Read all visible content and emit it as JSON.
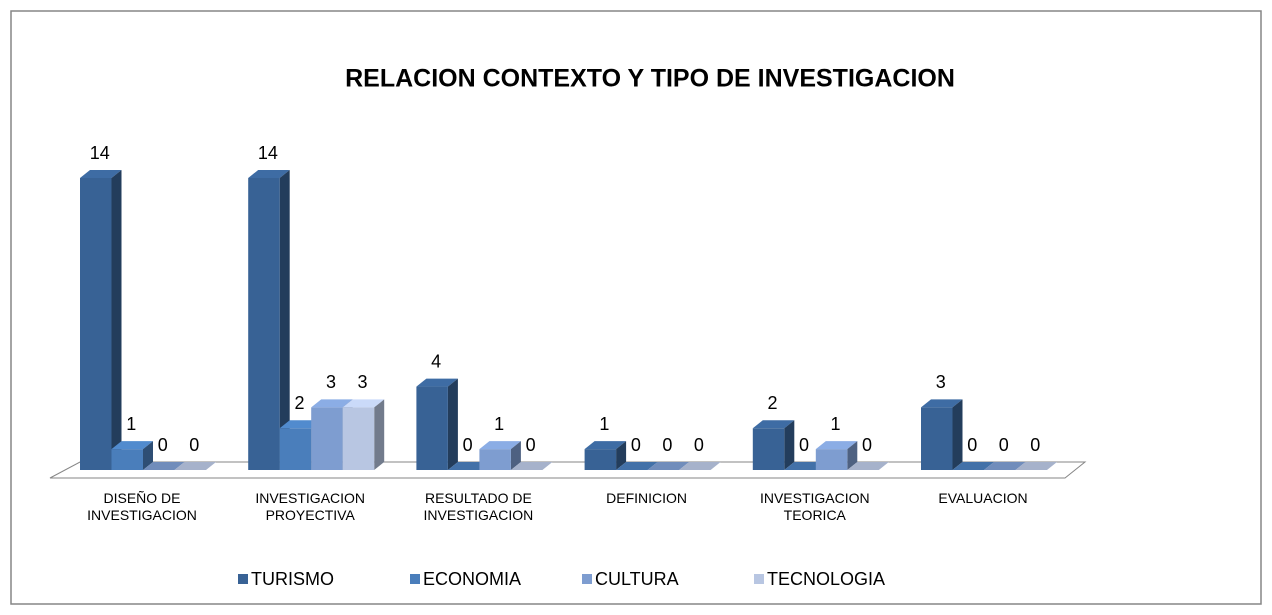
{
  "chart_data": {
    "type": "bar3d",
    "title": "RELACION CONTEXTO Y TIPO DE INVESTIGACION",
    "categories": [
      "DISEÑO DE INVESTIGACION",
      "INVESTIGACION PROYECTIVA",
      "RESULTADO DE INVESTIGACION",
      "DEFINICION",
      "INVESTIGACION TEORICA",
      "EVALUACION"
    ],
    "series": [
      {
        "name": "TURISMO",
        "color": "#386295",
        "values": [
          14,
          14,
          4,
          1,
          2,
          3
        ]
      },
      {
        "name": "ECONOMIA",
        "color": "#4a7ebb",
        "values": [
          1,
          2,
          0,
          0,
          0,
          0
        ]
      },
      {
        "name": "CULTURA",
        "color": "#7e9dd0",
        "values": [
          0,
          3,
          1,
          0,
          1,
          0
        ]
      },
      {
        "name": "TECNOLOGIA",
        "color": "#b8c6e2",
        "values": [
          0,
          3,
          0,
          0,
          0,
          0
        ]
      }
    ]
  }
}
